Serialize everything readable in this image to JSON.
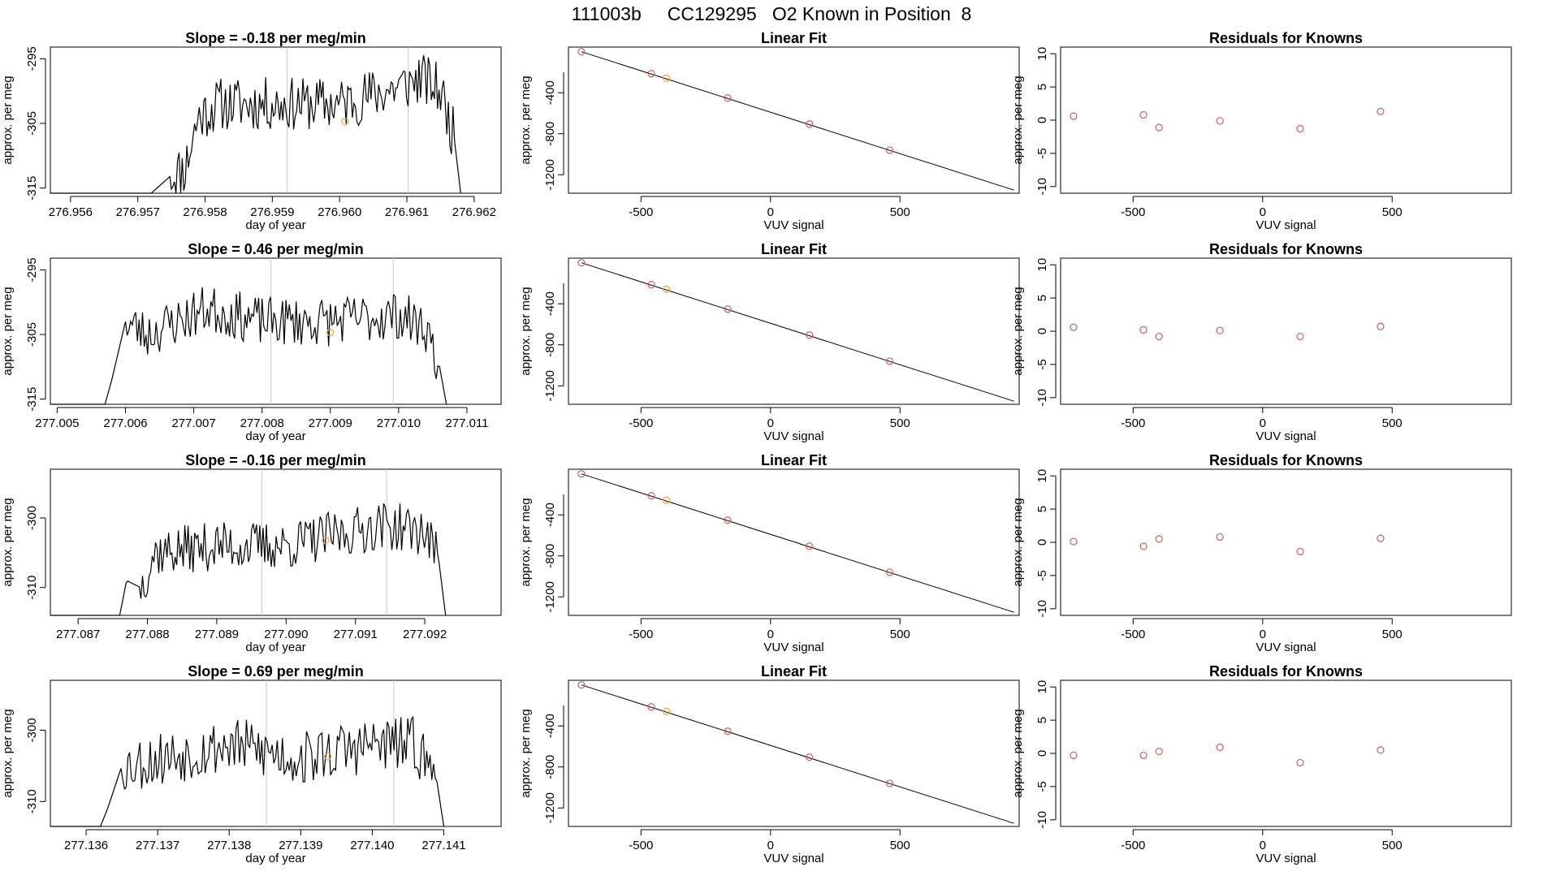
{
  "title": "111003b     CC129295   O2 Known in Position  8",
  "labels": {
    "ts_xlabel": "day of year",
    "ylabel": "approx. per meg",
    "fit_title": "Linear Fit",
    "fit_xlabel": "VUV signal",
    "resid_title": "Residuals for Knowns"
  },
  "colors": {
    "line": "#000000",
    "known": "#cd5c5c",
    "sample": "#e8a33d",
    "vline": "#c8c8c8"
  },
  "chart_data": [
    {
      "type": "line",
      "row": 1,
      "title": "Slope =  -0.18  per meg/min",
      "xlim": [
        276.9557,
        276.9624
      ],
      "ylim": [
        -315.8,
        -293.2
      ],
      "xticks": [
        "276.956",
        "276.957",
        "276.958",
        "276.959",
        "276.960",
        "276.961",
        "276.962"
      ],
      "yticks": [
        "-295",
        "-305",
        "-315"
      ],
      "start": 276.9572,
      "end": 276.9618,
      "base": -315.8,
      "plateau": [
        {
          "x": 276.9572,
          "y": -315.8
        },
        {
          "x": 276.9575,
          "y": -313
        },
        {
          "x": 276.9577,
          "y": -312
        },
        {
          "x": 276.9579,
          "y": -304
        },
        {
          "x": 276.9582,
          "y": -302
        },
        {
          "x": 276.96,
          "y": -302
        },
        {
          "x": 276.961,
          "y": -299
        },
        {
          "x": 276.9612,
          "y": -298
        },
        {
          "x": 276.9615,
          "y": -300
        },
        {
          "x": 276.9617,
          "y": -307
        },
        {
          "x": 276.9618,
          "y": -315.8
        }
      ],
      "noise": 2.6,
      "seed": 11,
      "vlines": [
        276.95922,
        276.96102
      ],
      "sample_point": {
        "x": 276.96008,
        "y": -304.7
      }
    },
    {
      "type": "line",
      "row": 2,
      "title": "Slope =  0.46  per meg/min",
      "xlim": [
        277.0049,
        277.0115
      ],
      "ylim": [
        -315.8,
        -293.2
      ],
      "xticks": [
        "277.005",
        "277.006",
        "277.007",
        "277.008",
        "277.009",
        "277.010",
        "277.011"
      ],
      "yticks": [
        "-295",
        "-305",
        "-315"
      ],
      "start": 277.0057,
      "end": 277.0107,
      "base": -315.8,
      "plateau": [
        {
          "x": 277.0057,
          "y": -315.8
        },
        {
          "x": 277.0058,
          "y": -312
        },
        {
          "x": 277.006,
          "y": -303
        },
        {
          "x": 277.0063,
          "y": -305
        },
        {
          "x": 277.0072,
          "y": -301
        },
        {
          "x": 277.008,
          "y": -303
        },
        {
          "x": 277.009,
          "y": -303
        },
        {
          "x": 277.01,
          "y": -302
        },
        {
          "x": 277.0104,
          "y": -304
        },
        {
          "x": 277.0106,
          "y": -310
        },
        {
          "x": 277.0107,
          "y": -315.8
        }
      ],
      "noise": 2.4,
      "seed": 23,
      "vlines": [
        277.00813,
        277.00992
      ],
      "sample_point": {
        "x": 277.009,
        "y": -304.7
      }
    },
    {
      "type": "line",
      "row": 3,
      "title": "Slope =  -0.16  per meg/min",
      "xlim": [
        277.0866,
        277.0931
      ],
      "ylim": [
        -314.0,
        -293.0
      ],
      "xticks": [
        "277.087",
        "277.088",
        "277.089",
        "277.090",
        "277.091",
        "277.092"
      ],
      "yticks": [
        "-300",
        "-310"
      ],
      "start": 277.0876,
      "end": 277.0923,
      "base": -314.0,
      "plateau": [
        {
          "x": 277.0876,
          "y": -314
        },
        {
          "x": 277.0877,
          "y": -309
        },
        {
          "x": 277.0879,
          "y": -310
        },
        {
          "x": 277.0881,
          "y": -305
        },
        {
          "x": 277.089,
          "y": -304
        },
        {
          "x": 277.09,
          "y": -304
        },
        {
          "x": 277.0914,
          "y": -301
        },
        {
          "x": 277.092,
          "y": -302
        },
        {
          "x": 277.0922,
          "y": -306
        },
        {
          "x": 277.0923,
          "y": -314
        }
      ],
      "noise": 2.2,
      "seed": 37,
      "vlines": [
        277.08965,
        277.09145
      ],
      "sample_point": {
        "x": 277.09057,
        "y": -303.2
      }
    },
    {
      "type": "line",
      "row": 4,
      "title": "Slope =  0.69  per meg/min",
      "xlim": [
        277.1355,
        277.1418
      ],
      "ylim": [
        -313.5,
        -293.0
      ],
      "xticks": [
        "277.136",
        "277.137",
        "277.138",
        "277.139",
        "277.140",
        "277.141"
      ],
      "yticks": [
        "-300",
        "-310"
      ],
      "start": 277.1362,
      "end": 277.141,
      "base": -313.5,
      "plateau": [
        {
          "x": 277.1362,
          "y": -313.5
        },
        {
          "x": 277.1363,
          "y": -311
        },
        {
          "x": 277.1365,
          "y": -305
        },
        {
          "x": 277.137,
          "y": -304
        },
        {
          "x": 277.138,
          "y": -302
        },
        {
          "x": 277.139,
          "y": -304
        },
        {
          "x": 277.14,
          "y": -302
        },
        {
          "x": 277.1406,
          "y": -302
        },
        {
          "x": 277.1409,
          "y": -307
        },
        {
          "x": 277.141,
          "y": -313.5
        }
      ],
      "noise": 2.5,
      "seed": 53,
      "vlines": [
        277.13852,
        277.1403
      ],
      "sample_point": {
        "x": 277.13938,
        "y": -303.7
      }
    },
    {
      "type": "scatter",
      "kind": "fit",
      "rows": [
        1,
        2,
        3,
        4
      ],
      "xlim": [
        -780,
        960
      ],
      "ylim": [
        -1380,
        45
      ],
      "xticks": [
        -500,
        0,
        500
      ],
      "yticks": [
        -400,
        -800,
        -1200
      ],
      "line": [
        {
          "x": -730,
          "y": 0
        },
        {
          "x": 940,
          "y": -1350
        }
      ],
      "known_points": [
        {
          "x": -730,
          "y": 0
        },
        {
          "x": -460,
          "y": -214
        },
        {
          "x": -165,
          "y": -452
        },
        {
          "x": 150,
          "y": -705
        },
        {
          "x": 460,
          "y": -960
        }
      ],
      "sample_points": [
        {
          "x": -402,
          "y": -258
        }
      ]
    },
    {
      "type": "scatter",
      "kind": "residuals",
      "xlim": [
        -780,
        960
      ],
      "ylim": [
        -11,
        11
      ],
      "xticks": [
        -500,
        0,
        500
      ],
      "yticks": [
        10,
        5,
        0,
        -5,
        -10
      ],
      "rows": [
        {
          "row": 1,
          "points": [
            {
              "x": -730,
              "y": 0.6
            },
            {
              "x": -460,
              "y": 0.8
            },
            {
              "x": -400,
              "y": -1.1
            },
            {
              "x": -165,
              "y": -0.1
            },
            {
              "x": 145,
              "y": -1.3
            },
            {
              "x": 455,
              "y": 1.3
            }
          ]
        },
        {
          "row": 2,
          "points": [
            {
              "x": -730,
              "y": 0.6
            },
            {
              "x": -460,
              "y": 0.2
            },
            {
              "x": -400,
              "y": -0.8
            },
            {
              "x": -165,
              "y": 0.1
            },
            {
              "x": 145,
              "y": -0.8
            },
            {
              "x": 455,
              "y": 0.7
            }
          ]
        },
        {
          "row": 3,
          "points": [
            {
              "x": -730,
              "y": 0.1
            },
            {
              "x": -460,
              "y": -0.6
            },
            {
              "x": -400,
              "y": 0.5
            },
            {
              "x": -165,
              "y": 0.8
            },
            {
              "x": 145,
              "y": -1.4
            },
            {
              "x": 455,
              "y": 0.6
            }
          ]
        },
        {
          "row": 4,
          "points": [
            {
              "x": -730,
              "y": -0.3
            },
            {
              "x": -460,
              "y": -0.3
            },
            {
              "x": -400,
              "y": 0.3
            },
            {
              "x": -165,
              "y": 0.9
            },
            {
              "x": 145,
              "y": -1.4
            },
            {
              "x": 455,
              "y": 0.5
            }
          ]
        }
      ]
    }
  ]
}
